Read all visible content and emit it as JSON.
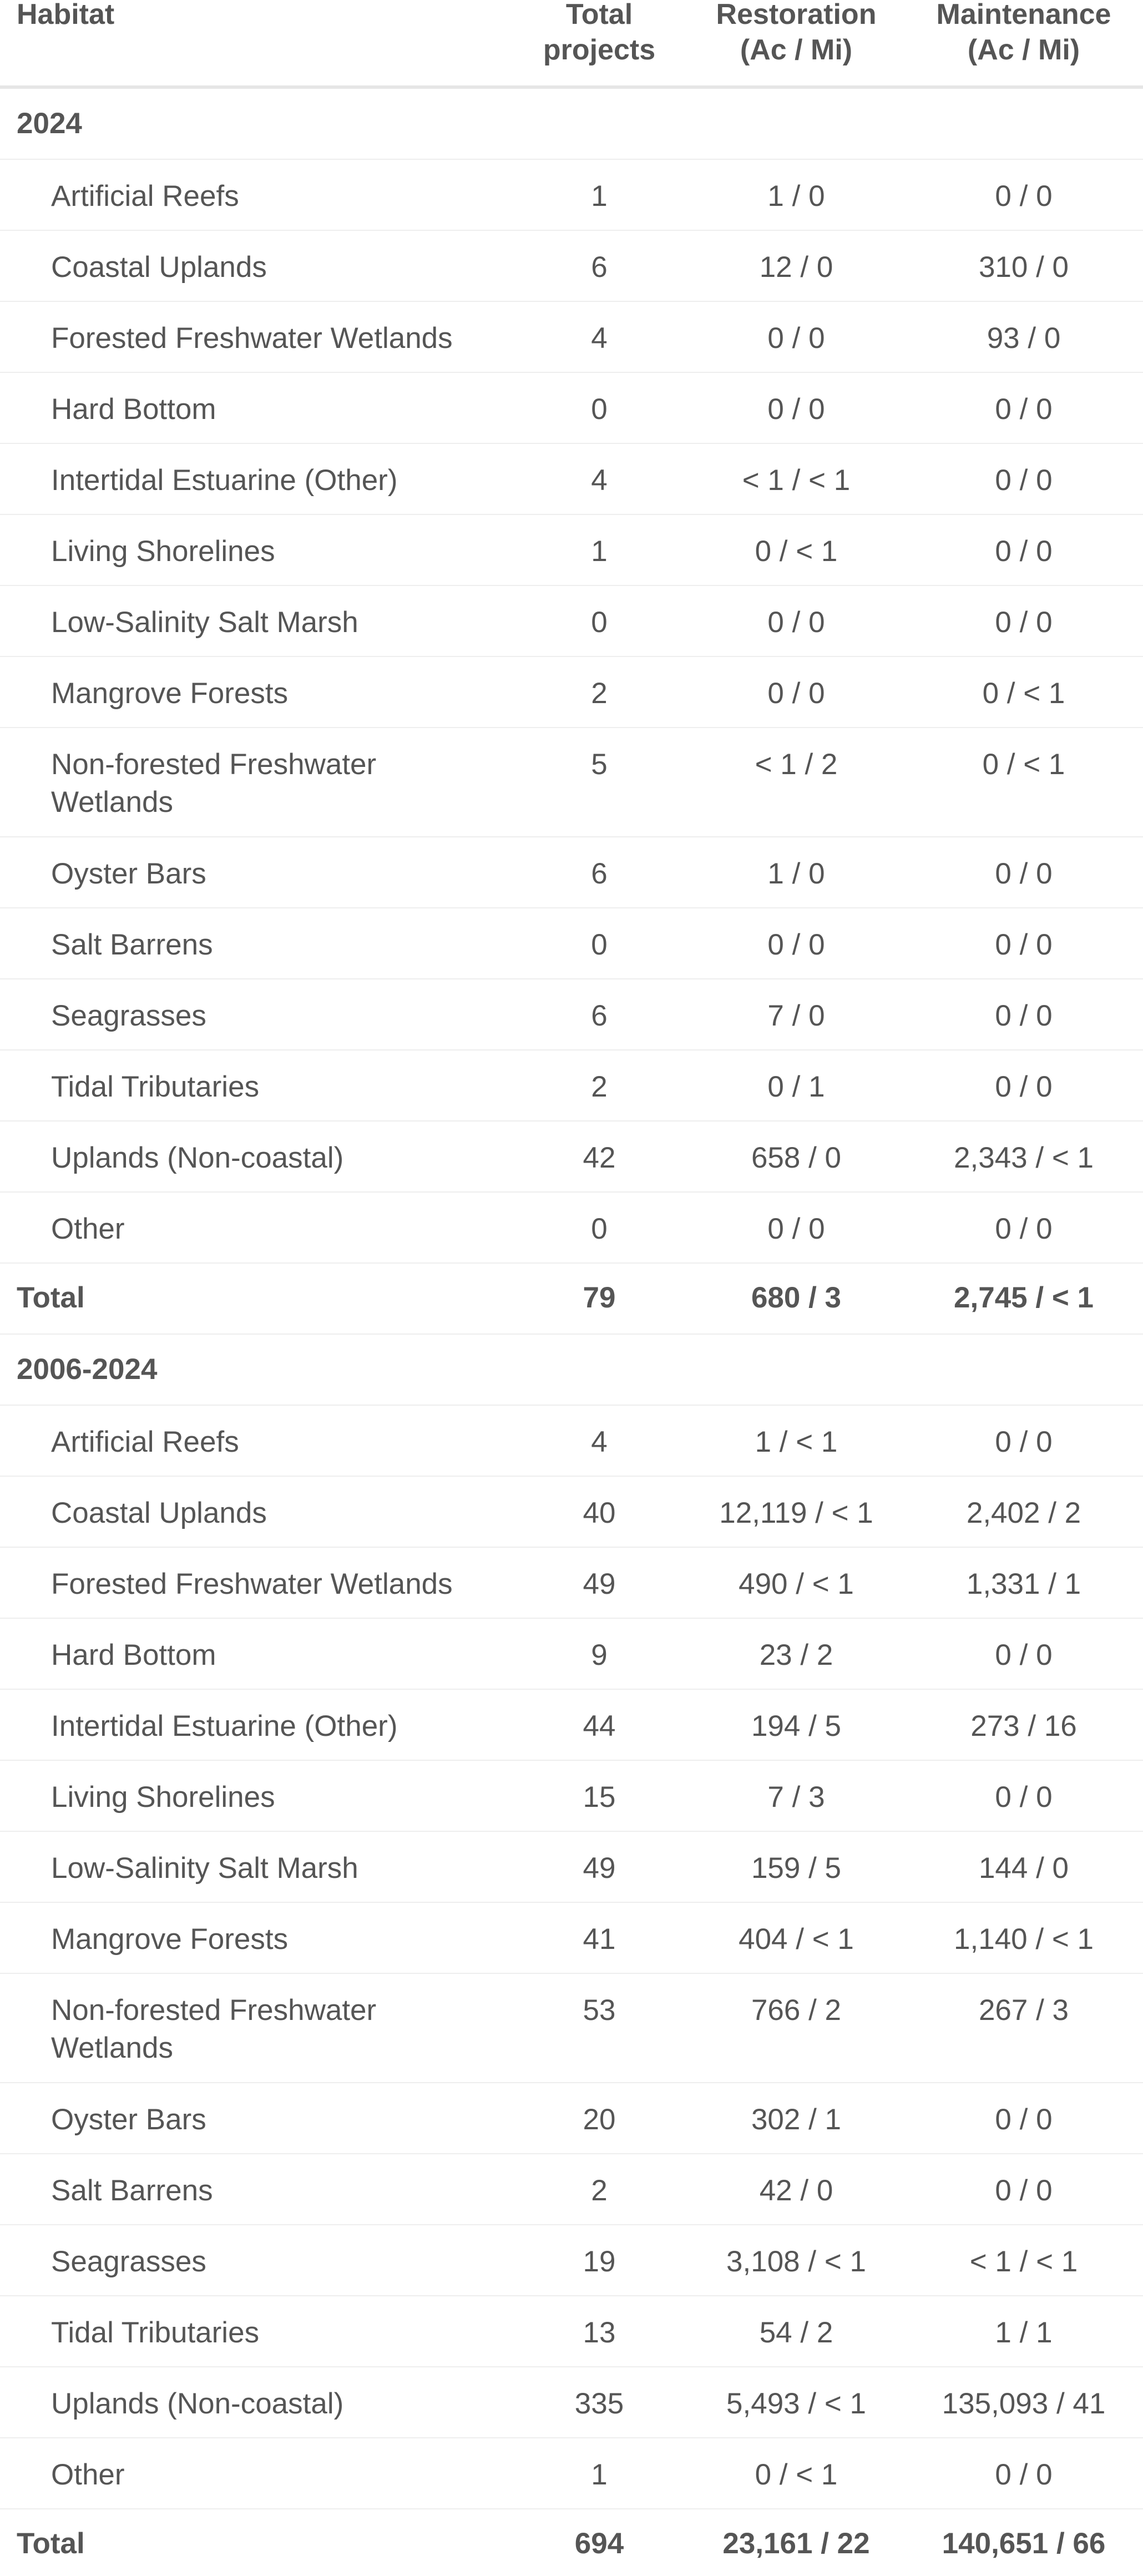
{
  "columns": {
    "habitat": "Habitat",
    "total_projects": "Total\nprojects",
    "restoration": "Restoration\n(Ac / Mi)",
    "maintenance": "Maintenance\n(Ac / Mi)"
  },
  "groups": [
    {
      "title": "2024",
      "rows": [
        {
          "habitat": "Artificial Reefs",
          "total": "1",
          "restoration": "1 / 0",
          "maintenance": "0 / 0"
        },
        {
          "habitat": "Coastal Uplands",
          "total": "6",
          "restoration": "12 / 0",
          "maintenance": "310 / 0"
        },
        {
          "habitat": "Forested Freshwater Wetlands",
          "total": "4",
          "restoration": "0 / 0",
          "maintenance": "93 / 0"
        },
        {
          "habitat": "Hard Bottom",
          "total": "0",
          "restoration": "0 / 0",
          "maintenance": "0 / 0"
        },
        {
          "habitat": "Intertidal Estuarine (Other)",
          "total": "4",
          "restoration": "< 1 / < 1",
          "maintenance": "0 / 0"
        },
        {
          "habitat": "Living Shorelines",
          "total": "1",
          "restoration": "0 / < 1",
          "maintenance": "0 / 0"
        },
        {
          "habitat": "Low-Salinity Salt Marsh",
          "total": "0",
          "restoration": "0 / 0",
          "maintenance": "0 / 0"
        },
        {
          "habitat": "Mangrove Forests",
          "total": "2",
          "restoration": "0 / 0",
          "maintenance": "0 / < 1"
        },
        {
          "habitat": "Non-forested Freshwater Wetlands",
          "total": "5",
          "restoration": "< 1 / 2",
          "maintenance": "0 / < 1"
        },
        {
          "habitat": "Oyster Bars",
          "total": "6",
          "restoration": "1 / 0",
          "maintenance": "0 / 0"
        },
        {
          "habitat": "Salt Barrens",
          "total": "0",
          "restoration": "0 / 0",
          "maintenance": "0 / 0"
        },
        {
          "habitat": "Seagrasses",
          "total": "6",
          "restoration": "7 / 0",
          "maintenance": "0 / 0"
        },
        {
          "habitat": "Tidal Tributaries",
          "total": "2",
          "restoration": "0 / 1",
          "maintenance": "0 / 0"
        },
        {
          "habitat": "Uplands (Non-coastal)",
          "total": "42",
          "restoration": "658 / 0",
          "maintenance": "2,343 / < 1"
        },
        {
          "habitat": "Other",
          "total": "0",
          "restoration": "0 / 0",
          "maintenance": "0 / 0"
        }
      ],
      "total": {
        "label": "Total",
        "total": "79",
        "restoration": "680 / 3",
        "maintenance": "2,745 / < 1"
      }
    },
    {
      "title": "2006-2024",
      "rows": [
        {
          "habitat": "Artificial Reefs",
          "total": "4",
          "restoration": "1 / < 1",
          "maintenance": "0 / 0"
        },
        {
          "habitat": "Coastal Uplands",
          "total": "40",
          "restoration": "12,119 / < 1",
          "maintenance": "2,402 / 2"
        },
        {
          "habitat": "Forested Freshwater Wetlands",
          "total": "49",
          "restoration": "490 / < 1",
          "maintenance": "1,331 / 1"
        },
        {
          "habitat": "Hard Bottom",
          "total": "9",
          "restoration": "23 / 2",
          "maintenance": "0 / 0"
        },
        {
          "habitat": "Intertidal Estuarine (Other)",
          "total": "44",
          "restoration": "194 / 5",
          "maintenance": "273 / 16"
        },
        {
          "habitat": "Living Shorelines",
          "total": "15",
          "restoration": "7 / 3",
          "maintenance": "0 / 0"
        },
        {
          "habitat": "Low-Salinity Salt Marsh",
          "total": "49",
          "restoration": "159 / 5",
          "maintenance": "144 / 0"
        },
        {
          "habitat": "Mangrove Forests",
          "total": "41",
          "restoration": "404 / < 1",
          "maintenance": "1,140 / < 1"
        },
        {
          "habitat": "Non-forested Freshwater Wetlands",
          "total": "53",
          "restoration": "766 / 2",
          "maintenance": "267 / 3"
        },
        {
          "habitat": "Oyster Bars",
          "total": "20",
          "restoration": "302 / 1",
          "maintenance": "0 / 0"
        },
        {
          "habitat": "Salt Barrens",
          "total": "2",
          "restoration": "42 / 0",
          "maintenance": "0 / 0"
        },
        {
          "habitat": "Seagrasses",
          "total": "19",
          "restoration": "3,108 / < 1",
          "maintenance": "< 1 / < 1"
        },
        {
          "habitat": "Tidal Tributaries",
          "total": "13",
          "restoration": "54 / 2",
          "maintenance": "1 / 1"
        },
        {
          "habitat": "Uplands (Non-coastal)",
          "total": "335",
          "restoration": "5,493 / < 1",
          "maintenance": "135,093 / 41"
        },
        {
          "habitat": "Other",
          "total": "1",
          "restoration": "0 / < 1",
          "maintenance": "0 / 0"
        }
      ],
      "total": {
        "label": "Total",
        "total": "694",
        "restoration": "23,161 / 22",
        "maintenance": "140,651 / 66"
      }
    }
  ]
}
